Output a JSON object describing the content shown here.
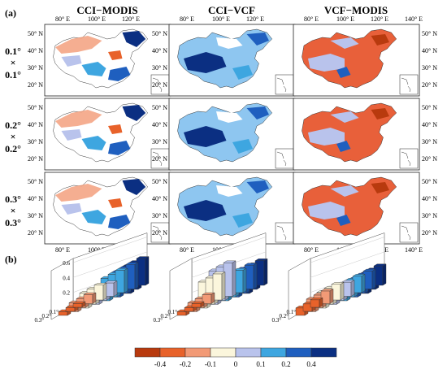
{
  "panel_labels": {
    "a": "(a)",
    "b": "(b)"
  },
  "columns": [
    "CCI−MODIS",
    "CCI−VCF",
    "VCF−MODIS"
  ],
  "row_labels": [
    {
      "top": "0.1°",
      "sep": "×",
      "bot": "0.1°"
    },
    {
      "top": "0.2°",
      "sep": "×",
      "bot": "0.2°"
    },
    {
      "top": "0.3°",
      "sep": "×",
      "bot": "0.3°"
    }
  ],
  "map_axes": {
    "lat_labels": [
      "50° N",
      "40° N",
      "30° N",
      "20° N"
    ],
    "lon_labels": [
      "80° E",
      "100° E",
      "120° E"
    ],
    "lon_labels_last": [
      "80° E",
      "100° E",
      "120° E",
      "140° E"
    ]
  },
  "colors": {
    "neg_dark": "#b83a0e",
    "neg_mid": "#e8622a",
    "neg_light": "#f29a76",
    "near_zero": "#fbf6dc",
    "pos_light": "#b9c3ec",
    "pos_mid": "#3ea6e0",
    "pos_dark": "#1f5fbf",
    "pos_darkest": "#0b2f82",
    "land_pos": "#8ec6f0",
    "land_neg": "#e8603a"
  },
  "chart_data": {
    "type": "bar3d",
    "colorbar": {
      "labels": [
        "-0.4",
        "-0.2",
        "-0.1",
        "0",
        "0.1",
        "0.2",
        "0.4"
      ],
      "colors": [
        "#b83a0e",
        "#e8622a",
        "#f29a76",
        "#fbf6dc",
        "#b9c3ec",
        "#3ea6e0",
        "#1f5fbf",
        "#0b2f82"
      ]
    },
    "z_ticks": [
      "0.6",
      "0.4",
      "0.2",
      "0"
    ],
    "resolutions": [
      "0.1°",
      "0.2°",
      "0.3°"
    ],
    "panels": [
      {
        "name": "CCI−MODIS",
        "values": [
          [
            0.05,
            0.05,
            0.05
          ],
          [
            0.12,
            0.12,
            0.12
          ],
          [
            0.2,
            0.2,
            0.2
          ],
          [
            0.18,
            0.18,
            0.18
          ],
          [
            0.3,
            0.3,
            0.3
          ],
          [
            0.33,
            0.33,
            0.33
          ],
          [
            0.36,
            0.36,
            0.36
          ]
        ]
      },
      {
        "name": "CCI−VCF",
        "values": [
          [
            0.05,
            0.05,
            0.05
          ],
          [
            0.12,
            0.12,
            0.12
          ],
          [
            0.35,
            0.35,
            0.35
          ],
          [
            0.45,
            0.45,
            0.45
          ],
          [
            0.3,
            0.3,
            0.3
          ],
          [
            0.32,
            0.32,
            0.32
          ],
          [
            0.33,
            0.33,
            0.33
          ]
        ]
      },
      {
        "name": "VCF−MODIS",
        "values": [
          [
            0.1,
            0.1,
            0.1
          ],
          [
            0.17,
            0.17,
            0.17
          ],
          [
            0.21,
            0.21,
            0.21
          ],
          [
            0.19,
            0.19,
            0.19
          ],
          [
            0.22,
            0.22,
            0.22
          ],
          [
            0.24,
            0.24,
            0.24
          ],
          [
            0.26,
            0.26,
            0.26
          ]
        ]
      }
    ],
    "zlim": [
      0,
      0.6
    ]
  }
}
